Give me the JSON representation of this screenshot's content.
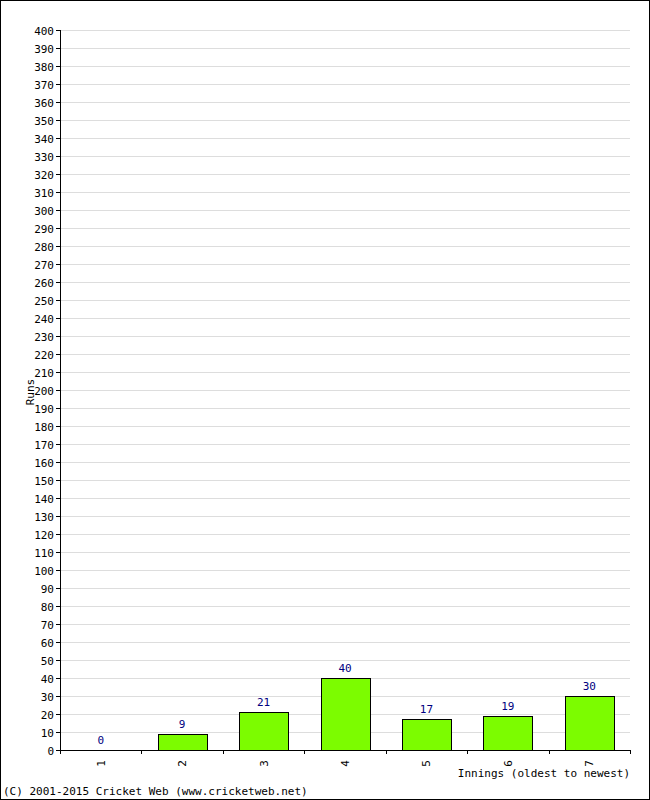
{
  "chart_data": {
    "type": "bar",
    "y_label": "Runs",
    "x_label": "Innings (oldest to newest)",
    "annotations": [
      "(C) 2001-2015 Cricket Web (www.cricketweb.net)"
    ],
    "categories": [
      "1",
      "2",
      "3",
      "4",
      "5",
      "6",
      "7"
    ],
    "values": [
      0,
      9,
      21,
      40,
      17,
      19,
      30
    ],
    "color": "#7cfc00",
    "ylim": [
      0,
      400
    ],
    "yticks": [
      0,
      10,
      20,
      30,
      40,
      50,
      60,
      70,
      80,
      90,
      100,
      110,
      120,
      130,
      140,
      150,
      160,
      170,
      180,
      190,
      200,
      210,
      220,
      230,
      240,
      250,
      260,
      270,
      280,
      290,
      300,
      310,
      320,
      330,
      340,
      350,
      360,
      370,
      380,
      390,
      400
    ],
    "grid": true,
    "data_labels": true
  }
}
